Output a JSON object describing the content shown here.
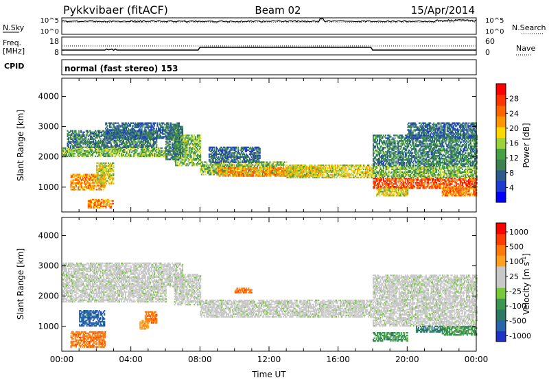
{
  "header": {
    "station": "Pykkvibaer (fitACF)",
    "beam": "Beam 02",
    "date": "15/Apr/2014"
  },
  "strip_labels": {
    "nsky": "N.Sky",
    "nsearch": "N.Search",
    "freq_top": "Freq.",
    "freq_unit": "[MHz]",
    "nave": "Nave",
    "cpid": "CPID",
    "mode": "normal (fast stereo) 153"
  },
  "strip_ticks": {
    "noise_left": [
      "10^5",
      "10^0"
    ],
    "noise_right": [
      "10^5",
      "10^0"
    ],
    "freq_left": [
      "18",
      "8"
    ],
    "nave_right": [
      "60",
      "0"
    ]
  },
  "colors": {
    "power": [
      "#0000ff",
      "#1e3cd2",
      "#2d5a8c",
      "#3c8250",
      "#46a046",
      "#9bd23c",
      "#ffd700",
      "#ff9600",
      "#ff6400",
      "#ff3200",
      "#ff0000"
    ],
    "velocity": [
      "#1e32c8",
      "#2864aa",
      "#2d7864",
      "#3c9650",
      "#78c83c",
      "#c8c8c8",
      "#c8c8c8",
      "#ffa01e",
      "#ff780a",
      "#ff3c00",
      "#ff0000"
    ]
  },
  "chart_data": [
    {
      "type": "heatmap",
      "name": "Power",
      "xlabel": "",
      "ylabel": "Slant Range [km]",
      "xlim": [
        "00:00",
        "24:00"
      ],
      "ylim": [
        180,
        4600
      ],
      "yticks": [
        1000,
        2000,
        3000,
        4000
      ],
      "colorbar_label": "Power [dB]",
      "colorbar_range": [
        0,
        32
      ],
      "colorbar_ticks": [
        "4",
        "8",
        "12",
        "16",
        "20",
        "24",
        "28"
      ],
      "bands": [
        {
          "t": [
            0.0,
            6.0
          ],
          "r0": 2000,
          "r1": 2300,
          "v": 14
        },
        {
          "t": [
            0.3,
            5.5
          ],
          "r0": 2300,
          "r1": 2850,
          "v": 10
        },
        {
          "t": [
            2.5,
            6.8
          ],
          "r0": 2600,
          "r1": 3100,
          "v": 8
        },
        {
          "t": [
            0.5,
            2.5
          ],
          "r0": 900,
          "r1": 1400,
          "v": 22
        },
        {
          "t": [
            2.0,
            3.0
          ],
          "r0": 1100,
          "r1": 1800,
          "v": 18
        },
        {
          "t": [
            1.5,
            3.0
          ],
          "r0": 300,
          "r1": 600,
          "v": 22
        },
        {
          "t": [
            6.5,
            8.0
          ],
          "r0": 1700,
          "r1": 2700,
          "v": 14
        },
        {
          "t": [
            6.0,
            7.0
          ],
          "r0": 1900,
          "r1": 3000,
          "v": 10
        },
        {
          "t": [
            8.0,
            13.0
          ],
          "r0": 1400,
          "r1": 1850,
          "v": 14
        },
        {
          "t": [
            9.0,
            15.0
          ],
          "r0": 1350,
          "r1": 1650,
          "v": 22
        },
        {
          "t": [
            13.0,
            18.0
          ],
          "r0": 1300,
          "r1": 1750,
          "v": 18
        },
        {
          "t": [
            8.5,
            11.5
          ],
          "r0": 1800,
          "r1": 2300,
          "v": 8
        },
        {
          "t": [
            18.0,
            24.0
          ],
          "r0": 950,
          "r1": 1300,
          "v": 26
        },
        {
          "t": [
            18.0,
            24.0
          ],
          "r0": 1300,
          "r1": 1700,
          "v": 14
        },
        {
          "t": [
            18.0,
            24.0
          ],
          "r0": 1700,
          "r1": 2700,
          "v": 10
        },
        {
          "t": [
            20.0,
            24.0
          ],
          "r0": 2600,
          "r1": 3100,
          "v": 8
        },
        {
          "t": [
            22.0,
            24.0
          ],
          "r0": 700,
          "r1": 1000,
          "v": 24
        },
        {
          "t": [
            18.2,
            20.0
          ],
          "r0": 700,
          "r1": 950,
          "v": 18
        }
      ]
    },
    {
      "type": "heatmap",
      "name": "Velocity",
      "xlabel": "Time UT",
      "ylabel": "Slant Range [km]",
      "xlim": [
        "00:00",
        "24:00"
      ],
      "xticks": [
        "00:00",
        "04:00",
        "08:00",
        "12:00",
        "16:00",
        "20:00",
        "00:00"
      ],
      "ylim": [
        180,
        4600
      ],
      "yticks": [
        1000,
        2000,
        3000,
        4000
      ],
      "colorbar_label": "Velocity [m s^-1]",
      "colorbar_ticks": [
        "1000",
        "500",
        "100",
        "25",
        "-25",
        "-100",
        "-500",
        "-1000"
      ],
      "bands": [
        {
          "t": [
            0.0,
            6.0
          ],
          "r0": 1800,
          "r1": 2300,
          "c": 5
        },
        {
          "t": [
            0.0,
            7.0
          ],
          "r0": 2300,
          "r1": 3100,
          "c": 5
        },
        {
          "t": [
            6.5,
            8.0
          ],
          "r0": 1700,
          "r1": 2700,
          "c": 5
        },
        {
          "t": [
            8.0,
            18.0
          ],
          "r0": 1300,
          "r1": 1850,
          "c": 5
        },
        {
          "t": [
            18.0,
            24.0
          ],
          "r0": 1000,
          "r1": 2700,
          "c": 5
        },
        {
          "t": [
            0.5,
            2.5
          ],
          "r0": 300,
          "r1": 800,
          "c": 8
        },
        {
          "t": [
            1.0,
            2.5
          ],
          "r0": 1000,
          "r1": 1500,
          "c": 1
        },
        {
          "t": [
            4.8,
            5.5
          ],
          "r0": 1100,
          "r1": 1500,
          "c": 8
        },
        {
          "t": [
            4.5,
            5.0
          ],
          "r0": 900,
          "r1": 1200,
          "c": 7
        },
        {
          "t": [
            10.0,
            11.0
          ],
          "r0": 2100,
          "r1": 2250,
          "c": 8
        },
        {
          "t": [
            18.0,
            20.0
          ],
          "r0": 500,
          "r1": 800,
          "c": 3
        },
        {
          "t": [
            22.0,
            24.0
          ],
          "r0": 700,
          "r1": 1000,
          "c": 3
        },
        {
          "t": [
            20.5,
            22.0
          ],
          "r0": 800,
          "r1": 1000,
          "c": 2
        }
      ]
    }
  ]
}
